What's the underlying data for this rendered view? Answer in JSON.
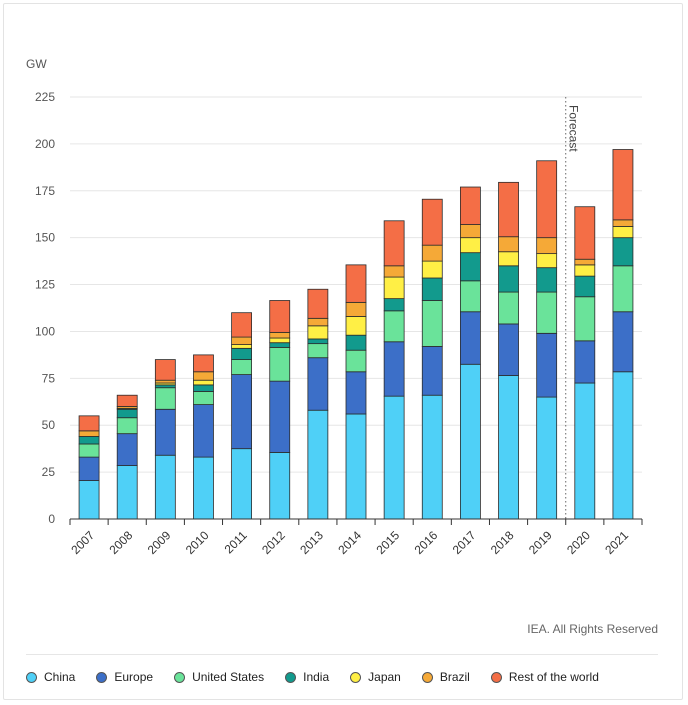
{
  "chart_data": {
    "type": "bar",
    "stacked": true,
    "unit_label": "GW",
    "categories": [
      "2007",
      "2008",
      "2009",
      "2010",
      "2011",
      "2012",
      "2013",
      "2014",
      "2015",
      "2016",
      "2017",
      "2018",
      "2019",
      "2020",
      "2021"
    ],
    "series": [
      {
        "name": "China",
        "color": "#4fd0f7",
        "values": [
          20.5,
          28.5,
          34,
          33,
          37.5,
          35.5,
          58,
          56,
          65.5,
          66,
          82.5,
          76.5,
          65,
          72.5,
          78.5
        ]
      },
      {
        "name": "Europe",
        "color": "#3c6fc8",
        "values": [
          12.5,
          17,
          24.5,
          28,
          39.5,
          38,
          28,
          22.5,
          29,
          26,
          28,
          27.5,
          34,
          22.5,
          32
        ]
      },
      {
        "name": "United States",
        "color": "#6ae39a",
        "values": [
          7,
          8.5,
          11.5,
          7,
          8,
          18,
          7.5,
          11.5,
          16.5,
          24.5,
          16.5,
          17,
          22,
          23.5,
          24.5
        ]
      },
      {
        "name": "India",
        "color": "#129a8d",
        "values": [
          4,
          4.5,
          1.5,
          3.5,
          6,
          2.5,
          2.5,
          8,
          6.5,
          12,
          15,
          14,
          13,
          11,
          15
        ]
      },
      {
        "name": "Japan",
        "color": "#ffef45",
        "values": [
          0,
          0.5,
          1,
          2.5,
          2,
          2.5,
          7,
          10,
          11.5,
          9,
          8,
          7.5,
          7.5,
          6,
          6
        ]
      },
      {
        "name": "Brazil",
        "color": "#f5a937",
        "values": [
          3,
          1,
          1.5,
          4.5,
          4,
          3,
          4,
          7.5,
          6,
          8.5,
          7,
          8,
          8.5,
          3,
          3.5
        ]
      },
      {
        "name": "Rest of the world",
        "color": "#f46e46",
        "values": [
          8,
          6,
          11,
          9,
          13,
          17,
          15.5,
          20,
          24,
          24.5,
          20,
          29,
          41,
          28,
          37.5
        ]
      }
    ],
    "ylim": [
      0,
      225
    ],
    "yticks": [
      0,
      25,
      50,
      75,
      100,
      125,
      150,
      175,
      200,
      225
    ],
    "grid": true,
    "legend_position": "bottom",
    "annotations": [
      {
        "text": "Forecast",
        "between": [
          "2019",
          "2020"
        ]
      }
    ]
  },
  "footer": {
    "credit": "IEA. All Rights Reserved"
  }
}
